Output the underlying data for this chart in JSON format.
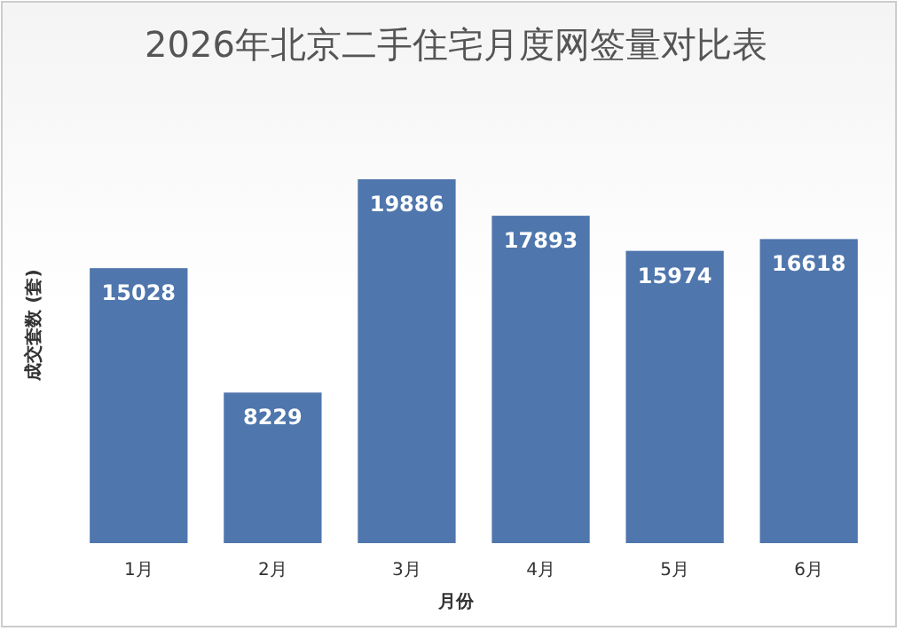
{
  "chart_data": {
    "type": "bar",
    "title": "2026年北京二手住宅月度网签量对比表",
    "xlabel": "月份",
    "ylabel": "成交套数 (套)",
    "categories": [
      "1月",
      "2月",
      "3月",
      "4月",
      "5月",
      "6月"
    ],
    "values": [
      15028,
      8229,
      19886,
      17893,
      15974,
      16618
    ],
    "color": "#4f76ad",
    "data_labels": true
  }
}
